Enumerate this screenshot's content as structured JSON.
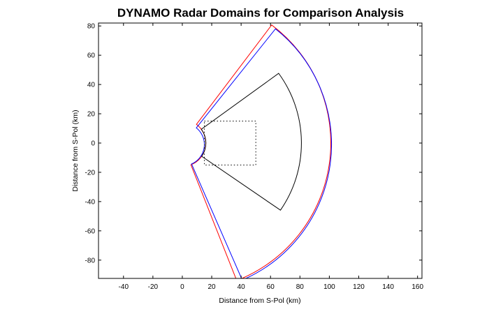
{
  "chart_data": {
    "type": "line",
    "title": "DYNAMO Radar Domains for Comparison Analysis",
    "xlabel": "Distance from S-Pol (km)",
    "ylabel": "Distance from S-Pol (km)",
    "xlim": [
      -57,
      163
    ],
    "ylim": [
      -92.5,
      82
    ],
    "xticks": [
      -40,
      -20,
      0,
      20,
      40,
      60,
      80,
      100,
      120,
      140,
      160
    ],
    "yticks": [
      -80,
      -60,
      -40,
      -20,
      0,
      20,
      40,
      60,
      80
    ],
    "grid": false,
    "legend": "none",
    "series": [
      {
        "color": "#ff0000",
        "shape": "sector",
        "center": [
          0,
          0
        ],
        "inner_radius": 16,
        "outer_radius": 101,
        "start_angle_deg": -68.5,
        "end_angle_deg": 53
      },
      {
        "color": "#0000ff",
        "shape": "sector",
        "center": [
          0.5,
          -1
        ],
        "inner_radius": 14.5,
        "outer_radius": 101,
        "start_angle_deg": -66.5,
        "end_angle_deg": 51.5
      },
      {
        "color": "#000000",
        "shape": "sector",
        "center": [
          0,
          0
        ],
        "inner_radius": 16,
        "outer_radius": 81,
        "start_angle_deg": -34.5,
        "end_angle_deg": 36
      },
      {
        "color": "#000000",
        "shape": "rectangle",
        "dashed": true,
        "x": [
          15,
          50
        ],
        "y": [
          -15,
          15
        ]
      }
    ]
  }
}
